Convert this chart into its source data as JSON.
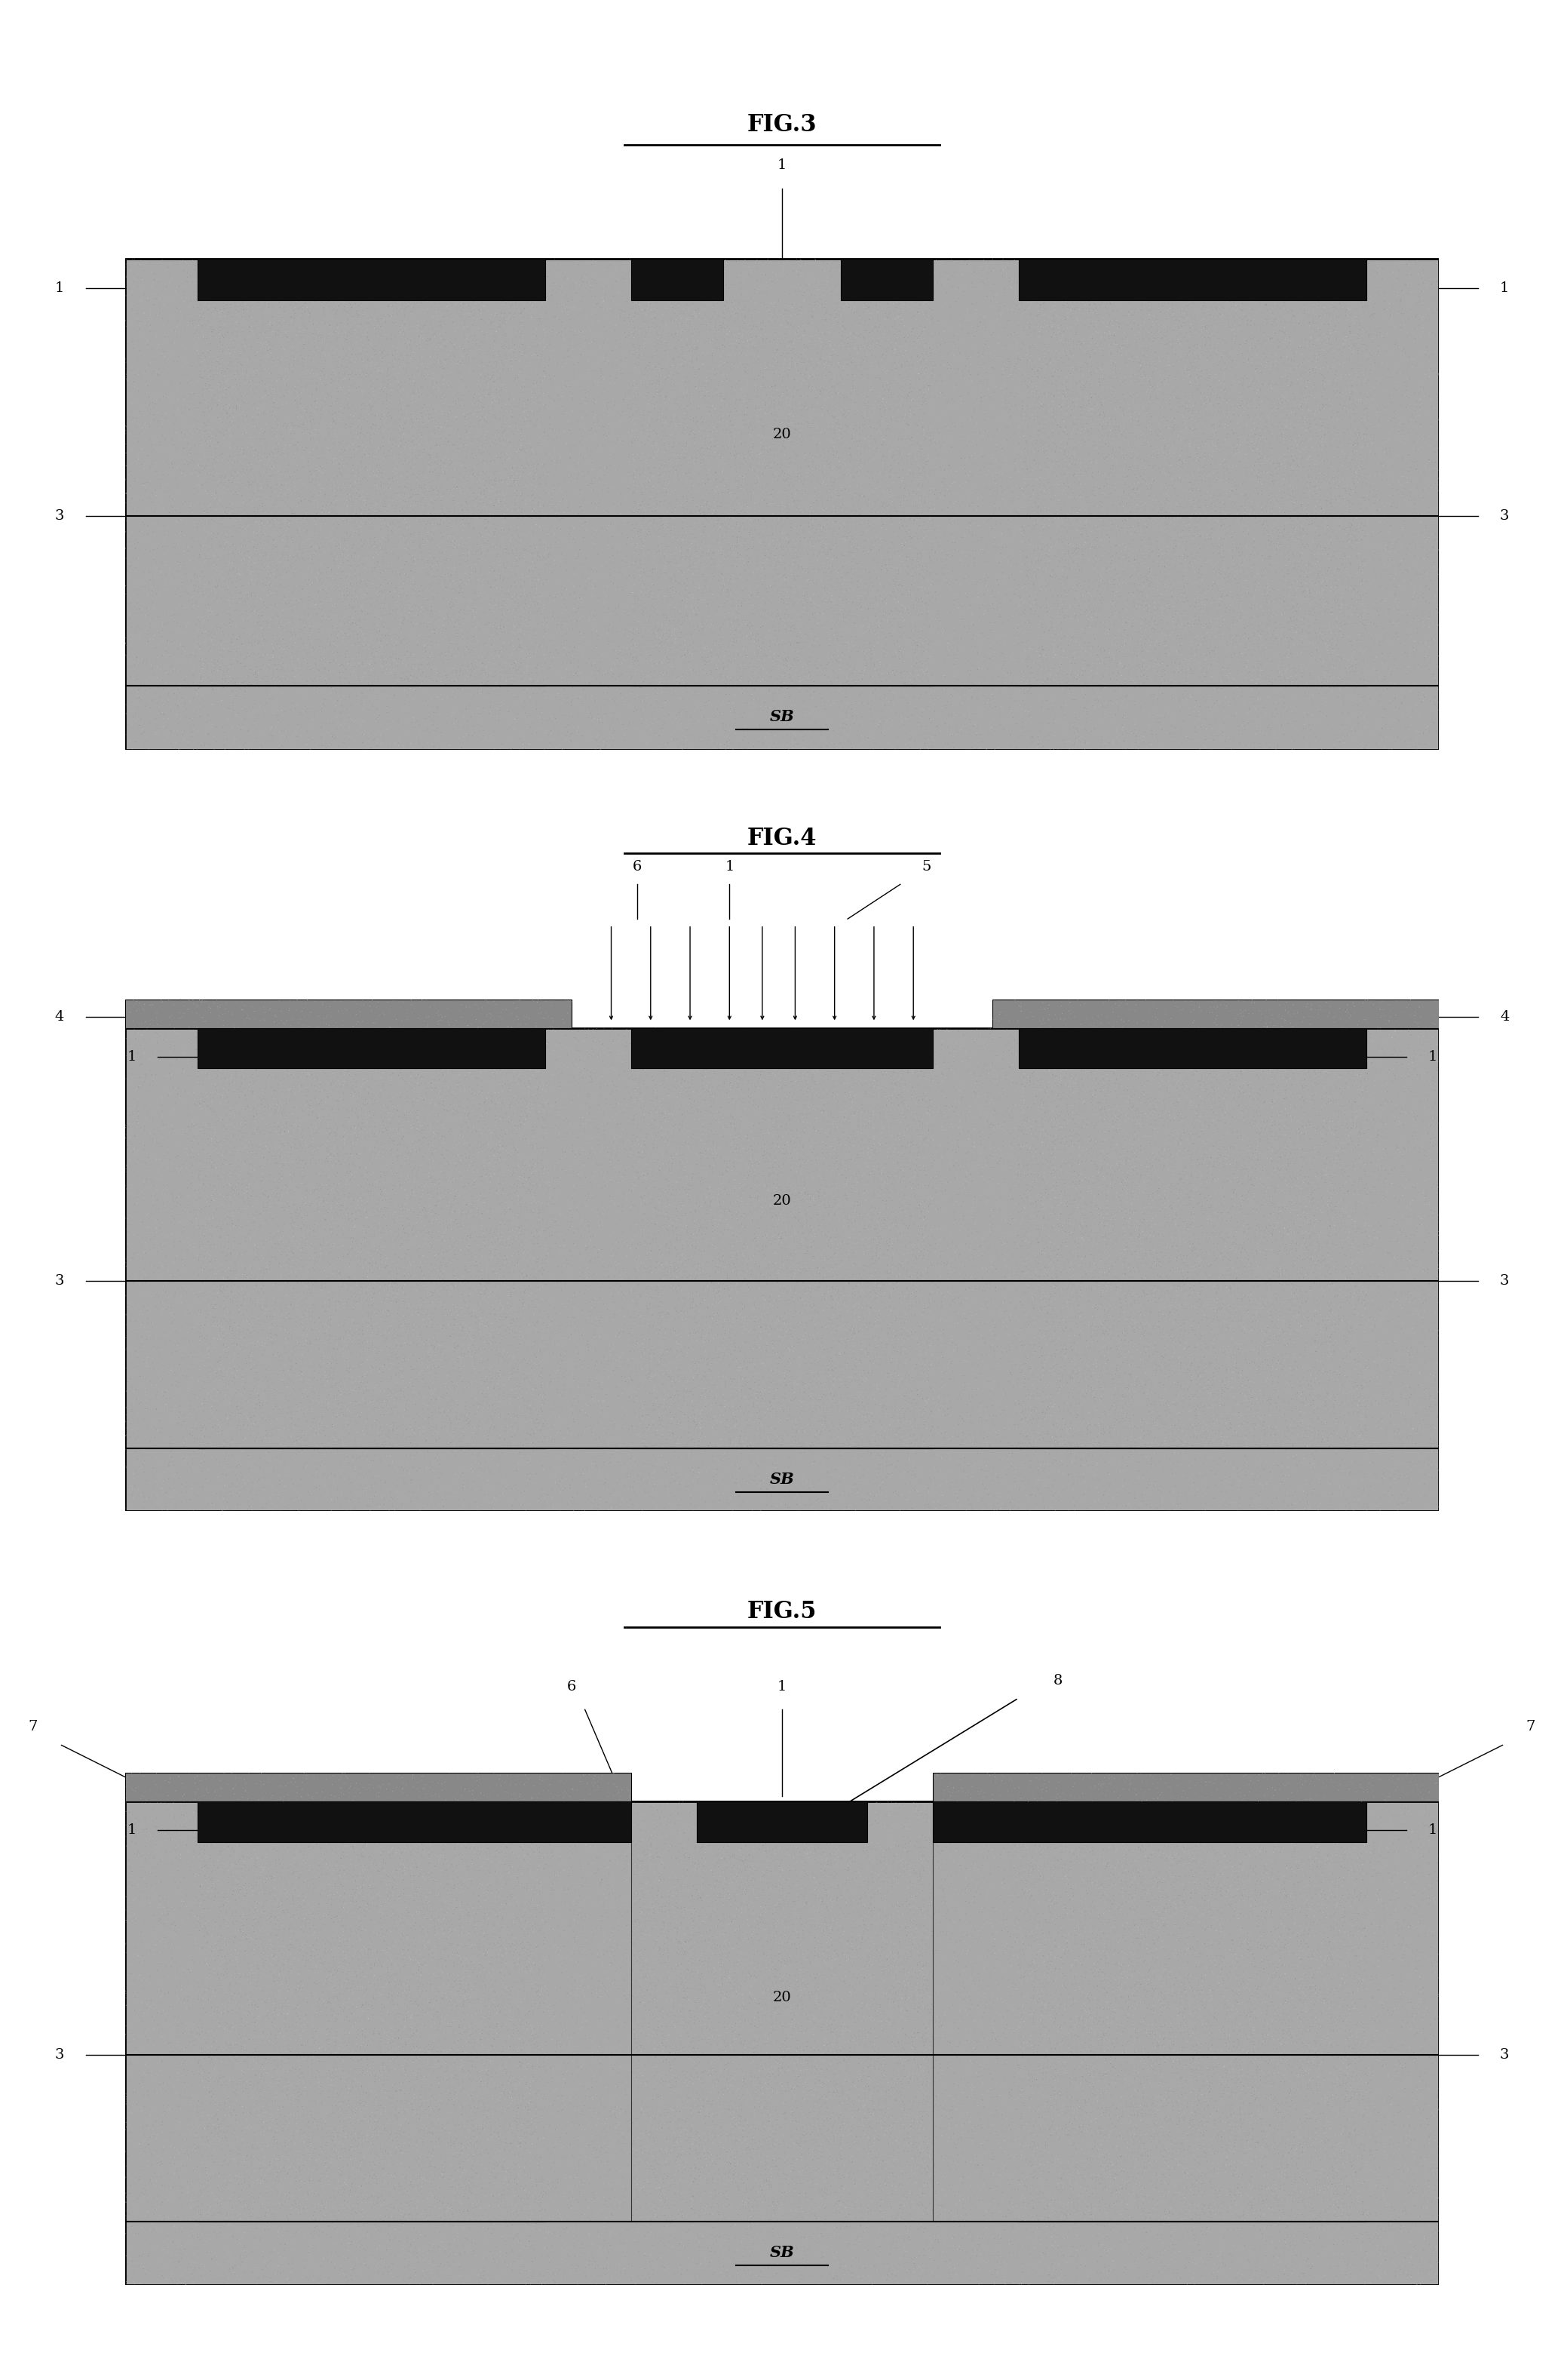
{
  "bg_color": "#ffffff",
  "fig_width": 20.74,
  "fig_height": 31.55,
  "substrate_color": "#b0b0b0",
  "epi_hatch_color": "#444444",
  "epi_face_color": "#cccccc",
  "oxide_color": "#111111",
  "gray_cap_color": "#999999",
  "noise_color": "#888888"
}
